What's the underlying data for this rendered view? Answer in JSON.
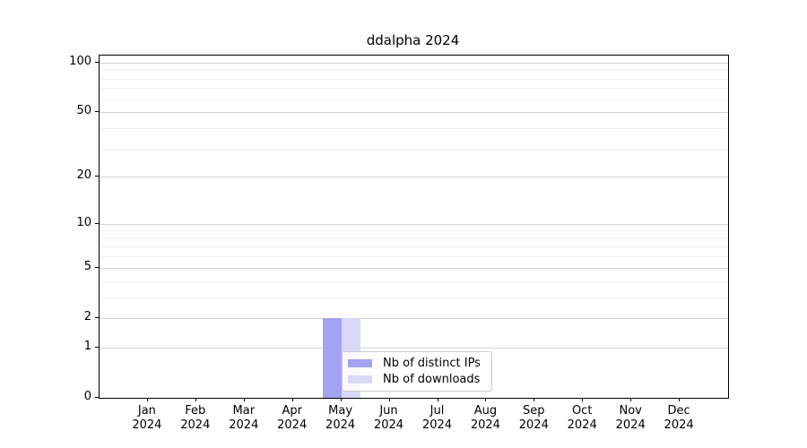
{
  "chart_data": {
    "type": "bar",
    "title": "ddalpha 2024",
    "categories": [
      "Jan",
      "Feb",
      "Mar",
      "Apr",
      "May",
      "Jun",
      "Jul",
      "Aug",
      "Sep",
      "Oct",
      "Nov",
      "Dec"
    ],
    "year_label": "2024",
    "series": [
      {
        "name": "Nb of distinct IPs",
        "color": "#a3a3f2",
        "values": [
          0,
          0,
          0,
          0,
          2,
          0,
          0,
          0,
          0,
          0,
          0,
          0
        ]
      },
      {
        "name": "Nb of downloads",
        "color": "#d9d9f7",
        "values": [
          0,
          0,
          0,
          0,
          2,
          0,
          0,
          0,
          0,
          0,
          0,
          0
        ]
      }
    ],
    "xlabel": "",
    "ylabel": "",
    "y_scale": "log10(value+1)",
    "ylim": [
      0,
      110
    ],
    "y_major_ticks": [
      0,
      1,
      2,
      5,
      10,
      20,
      50,
      100
    ],
    "y_minor_gridlines": [
      3,
      4,
      6,
      7,
      8,
      9,
      30,
      40,
      60,
      70,
      80,
      90
    ],
    "grid": "on",
    "legend_position": "inside-bottom-left-of-center",
    "colors": {
      "axis": "#000000",
      "major_grid": "#d2d2d2",
      "minor_grid": "#efefef",
      "background": "#ffffff"
    }
  }
}
